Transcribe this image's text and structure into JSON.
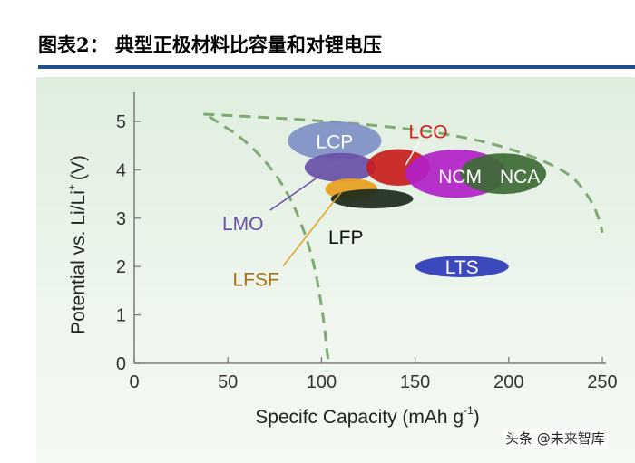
{
  "header": {
    "title": "图表2：  典型正极材料比容量和对锂电压"
  },
  "watermark": {
    "text": "头条 @未来智库"
  },
  "colors": {
    "rule": "#1f4e8c",
    "dashed": "#7faa72",
    "axis": "#7a7a7a"
  },
  "chart_data": {
    "type": "scatter",
    "title": "",
    "xlabel": "Specifc Capacity (mAh g",
    "xlabel_sup": "-1",
    "ylabel": "Potential vs. Li/Li",
    "ylabel_sup": "+",
    "ylabel_unit": "(V)",
    "xlim": [
      0,
      250
    ],
    "ylim": [
      0,
      5.5
    ],
    "xticks": [
      0,
      50,
      100,
      150,
      200,
      250
    ],
    "yticks": [
      0,
      1,
      2,
      3,
      4,
      5
    ],
    "series": [
      {
        "name": "LCP",
        "cx": 107,
        "cy": 4.6,
        "rx": 25,
        "ry": 0.4,
        "color": "#7f8fc4",
        "label_color": "#ffffff",
        "label_at": [
          107,
          4.6
        ]
      },
      {
        "name": "LMO",
        "cx": 110,
        "cy": 4.05,
        "rx": 19,
        "ry": 0.3,
        "color": "#6a4fa8",
        "label_color": "#6a4fa8",
        "label_at": [
          58,
          2.9
        ],
        "leader_to": [
          100,
          3.9
        ]
      },
      {
        "name": "LFSF",
        "cx": 116,
        "cy": 3.6,
        "rx": 14,
        "ry": 0.22,
        "color": "#e8a020",
        "label_color": "#a87010",
        "label_at": [
          65,
          1.75
        ],
        "leader_to": [
          111,
          3.56
        ]
      },
      {
        "name": "LFP",
        "cx": 127,
        "cy": 3.4,
        "rx": 22,
        "ry": 0.2,
        "color": "#1c2a1c",
        "label_color": "#111111",
        "label_at": [
          113,
          2.62
        ]
      },
      {
        "name": "LCO",
        "cx": 141,
        "cy": 4.05,
        "rx": 17,
        "ry": 0.38,
        "color": "#c81e1e",
        "label_color": "#d42020",
        "label_at": [
          157,
          4.8
        ],
        "leader_to": [
          145,
          4.1
        ]
      },
      {
        "name": "NCM",
        "cx": 172,
        "cy": 3.92,
        "rx": 27,
        "ry": 0.5,
        "color": "#b21fc8",
        "label_color": "#ffffff",
        "label_at": [
          174,
          3.88
        ]
      },
      {
        "name": "NCA",
        "cx": 197,
        "cy": 3.92,
        "rx": 23,
        "ry": 0.42,
        "color": "#3c6b35",
        "label_color": "#ffffff",
        "label_at": [
          206,
          3.88
        ]
      },
      {
        "name": "LTS",
        "cx": 175,
        "cy": 2.0,
        "rx": 25,
        "ry": 0.22,
        "color": "#2b3ab8",
        "label_color": "#ffffff",
        "label_at": [
          175,
          2.0
        ]
      }
    ],
    "dashed_envelopes": [
      {
        "name": "outer",
        "x": [
          37,
          110,
          180,
          230,
          244,
          249,
          250
        ],
        "y": [
          5.15,
          5.0,
          4.7,
          4.05,
          3.4,
          2.9,
          2.7
        ]
      },
      {
        "name": "inner",
        "x": [
          40,
          62,
          82,
          95,
          101,
          103,
          104
        ],
        "y": [
          5.1,
          4.55,
          3.6,
          2.3,
          1.0,
          0.2,
          0.0
        ]
      }
    ]
  }
}
